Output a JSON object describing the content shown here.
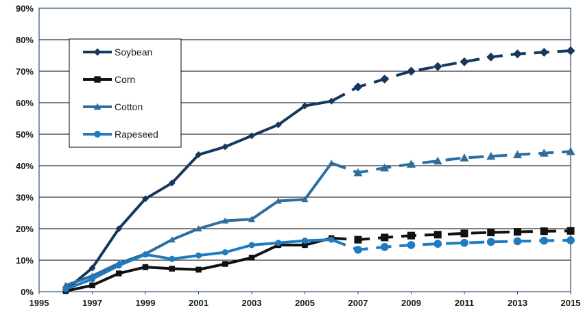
{
  "chart_data": {
    "type": "line",
    "title": "",
    "xlabel": "",
    "ylabel": "",
    "xlim": [
      1995,
      2015
    ],
    "ylim": [
      0,
      90
    ],
    "x_ticks": [
      "1995",
      "1997",
      "1999",
      "2001",
      "2003",
      "2005",
      "2007",
      "2009",
      "2011",
      "2013",
      "2015"
    ],
    "y_ticks": [
      "0%",
      "10%",
      "20%",
      "30%",
      "40%",
      "50%",
      "60%",
      "70%",
      "80%",
      "90%"
    ],
    "grid": "horizontal",
    "legend_position": "top-left",
    "dashed_from_x": 2006,
    "series": [
      {
        "name": "Soybean",
        "color": "#17375e",
        "marker": "diamond",
        "x": [
          1996,
          1997,
          1998,
          1999,
          2000,
          2001,
          2002,
          2003,
          2004,
          2005,
          2006,
          2007,
          2008,
          2009,
          2010,
          2011,
          2012,
          2013,
          2014,
          2015
        ],
        "values": [
          0.5,
          7.5,
          20,
          29.5,
          34.5,
          43.5,
          46,
          49.5,
          53,
          59,
          60.5,
          65,
          67.5,
          70,
          71.5,
          73,
          74.5,
          75.5,
          76,
          76.5
        ]
      },
      {
        "name": "Corn",
        "color": "#111111",
        "marker": "square",
        "x": [
          1996,
          1997,
          1998,
          1999,
          2000,
          2001,
          2002,
          2003,
          2004,
          2005,
          2006,
          2007,
          2008,
          2009,
          2010,
          2011,
          2012,
          2013,
          2014,
          2015
        ],
        "values": [
          0.2,
          2,
          5.8,
          7.8,
          7.3,
          7,
          8.8,
          10.8,
          14.8,
          14.8,
          17,
          16.5,
          17.2,
          17.8,
          18.1,
          18.5,
          18.8,
          19,
          19.2,
          19.3
        ]
      },
      {
        "name": "Cotton",
        "color": "#2e6e9e",
        "marker": "triangle",
        "x": [
          1996,
          1997,
          1998,
          1999,
          2000,
          2001,
          2002,
          2003,
          2004,
          2005,
          2006,
          2007,
          2008,
          2009,
          2010,
          2011,
          2012,
          2013,
          2014,
          2015
        ],
        "values": [
          2,
          5,
          9,
          12,
          16.5,
          20,
          22.5,
          23,
          28.8,
          29.3,
          40.8,
          37.8,
          39.3,
          40.5,
          41.5,
          42.5,
          43,
          43.5,
          44,
          44.5
        ]
      },
      {
        "name": "Rapeseed",
        "color": "#1f7bbf",
        "marker": "circle",
        "x": [
          1996,
          1997,
          1998,
          1999,
          2000,
          2001,
          2002,
          2003,
          2004,
          2005,
          2006,
          2007,
          2008,
          2009,
          2010,
          2011,
          2012,
          2013,
          2014,
          2015
        ],
        "values": [
          0.8,
          4,
          8.3,
          11.8,
          10.4,
          11.5,
          12.5,
          14.8,
          15.5,
          16.2,
          16.5,
          13.3,
          14.2,
          14.8,
          15.2,
          15.5,
          15.8,
          16,
          16.2,
          16.3
        ]
      }
    ]
  }
}
